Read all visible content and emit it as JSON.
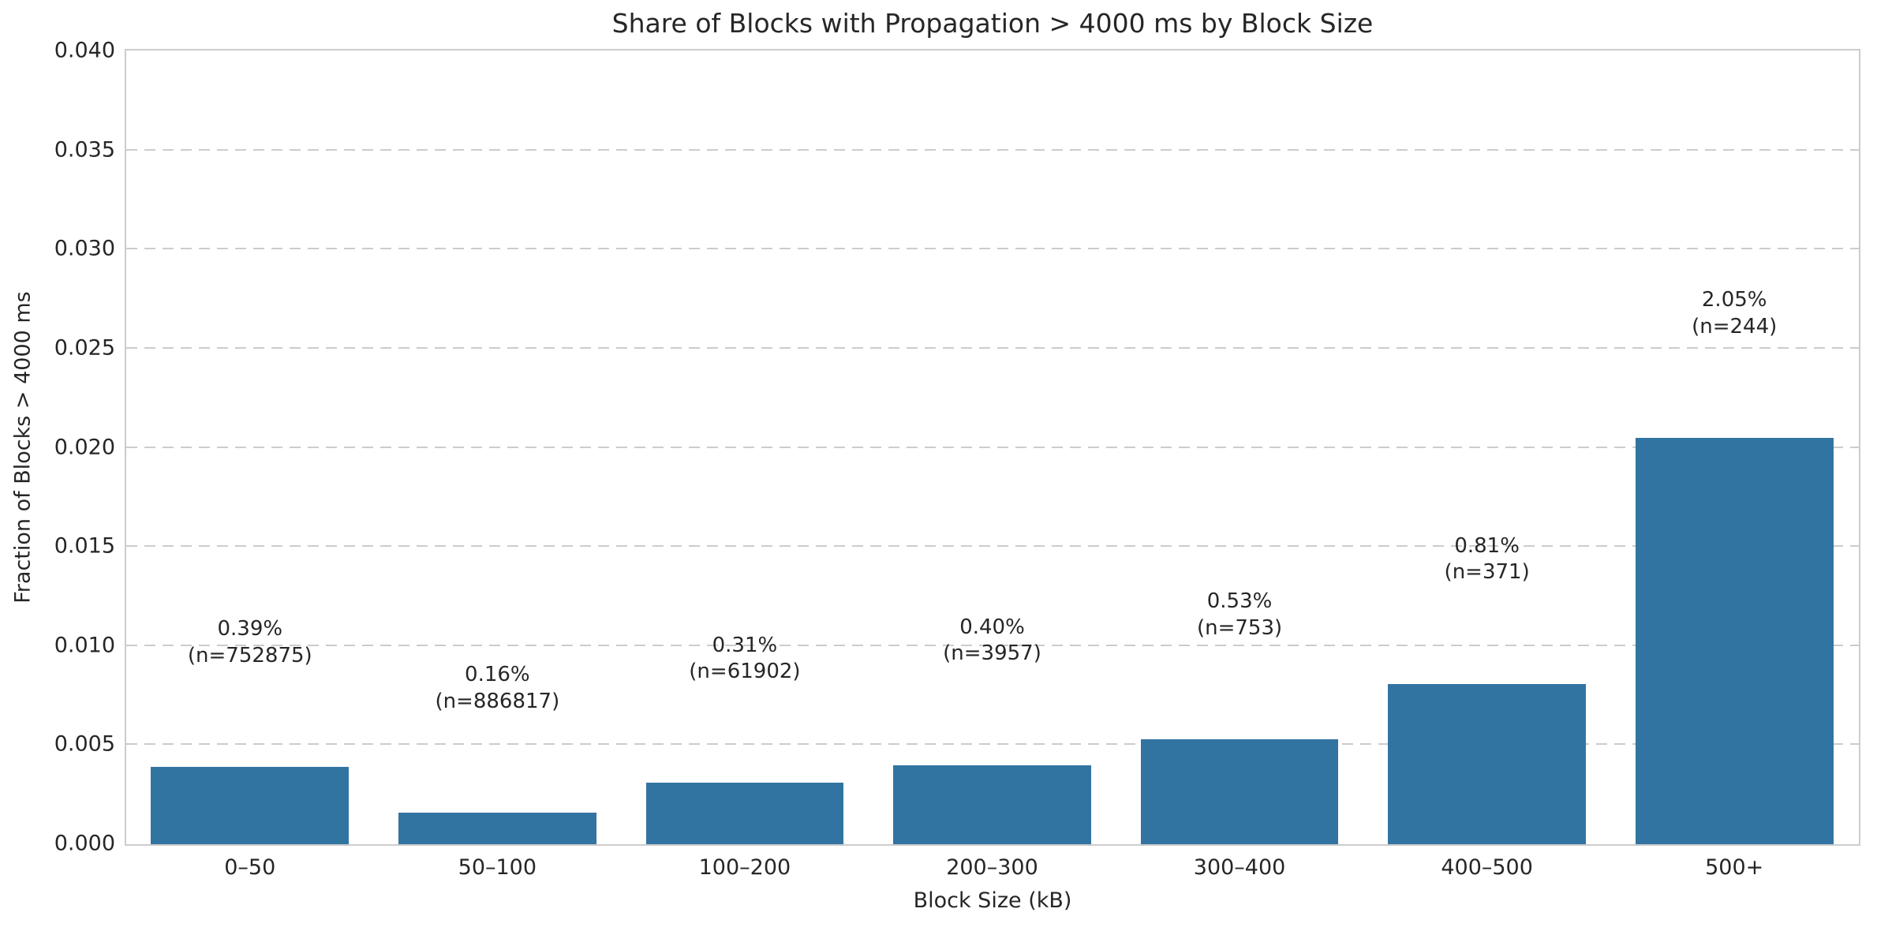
{
  "chart_data": {
    "type": "bar",
    "title": "Share of Blocks with Propagation > 4000 ms by Block Size",
    "xlabel": "Block Size (kB)",
    "ylabel": "Fraction of Blocks > 4000 ms",
    "categories": [
      "0–50",
      "50–100",
      "100–200",
      "200–300",
      "300–400",
      "400–500",
      "500+"
    ],
    "values": [
      0.0039,
      0.0016,
      0.0031,
      0.004,
      0.0053,
      0.0081,
      0.0205
    ],
    "annotations": [
      {
        "pct": "0.39%",
        "n": "(n=752875)"
      },
      {
        "pct": "0.16%",
        "n": "(n=886817)"
      },
      {
        "pct": "0.31%",
        "n": "(n=61902)"
      },
      {
        "pct": "0.40%",
        "n": "(n=3957)"
      },
      {
        "pct": "0.53%",
        "n": "(n=753)"
      },
      {
        "pct": "0.81%",
        "n": "(n=371)"
      },
      {
        "pct": "2.05%",
        "n": "(n=244)"
      }
    ],
    "ylim": [
      0,
      0.04
    ],
    "yticks": [
      "0.000",
      "0.005",
      "0.010",
      "0.015",
      "0.020",
      "0.025",
      "0.030",
      "0.035",
      "0.040"
    ],
    "grid": "horizontal-dashed",
    "legend": "none",
    "bar_color": "#3274a1",
    "grid_color": "#cccccc",
    "spine_color": "#cccccc",
    "text_color": "#262626",
    "bar_width_fraction": 0.8
  }
}
